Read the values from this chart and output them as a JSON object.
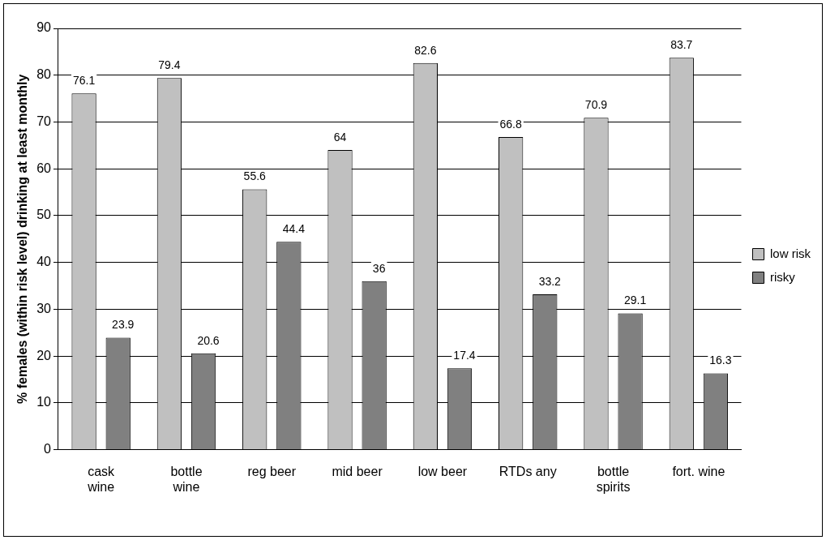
{
  "chart_data": {
    "type": "bar",
    "ylabel": "% females (within risk level) drinking at least monthly",
    "categories": [
      "cask\nwine",
      "bottle\nwine",
      "reg beer",
      "mid beer",
      "low beer",
      "RTDs any",
      "bottle\nspirits",
      "fort. wine"
    ],
    "series": [
      {
        "name": "low risk",
        "color": "#c0c0c0",
        "values": [
          76.1,
          79.4,
          55.6,
          64,
          82.6,
          66.8,
          70.9,
          83.7
        ]
      },
      {
        "name": "risky",
        "color": "#808080",
        "values": [
          23.9,
          20.6,
          44.4,
          36,
          17.4,
          33.2,
          29.1,
          16.3
        ]
      }
    ],
    "ylim": [
      0,
      90
    ],
    "yticks": [
      0,
      10,
      20,
      30,
      40,
      50,
      60,
      70,
      80,
      90
    ],
    "grid": "y",
    "legend": "right",
    "data_labels": true
  }
}
